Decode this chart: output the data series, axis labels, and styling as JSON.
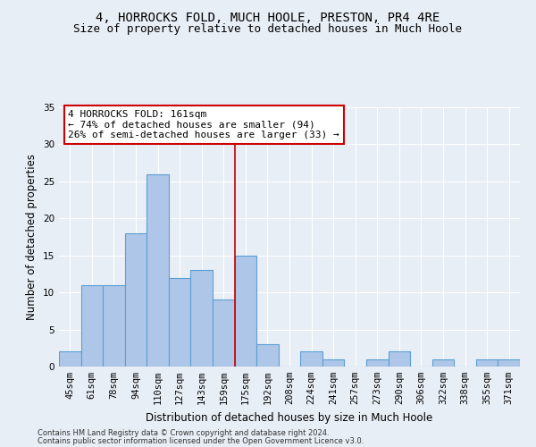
{
  "title": "4, HORROCKS FOLD, MUCH HOOLE, PRESTON, PR4 4RE",
  "subtitle": "Size of property relative to detached houses in Much Hoole",
  "xlabel": "Distribution of detached houses by size in Much Hoole",
  "ylabel": "Number of detached properties",
  "categories": [
    "45sqm",
    "61sqm",
    "78sqm",
    "94sqm",
    "110sqm",
    "127sqm",
    "143sqm",
    "159sqm",
    "175sqm",
    "192sqm",
    "208sqm",
    "224sqm",
    "241sqm",
    "257sqm",
    "273sqm",
    "290sqm",
    "306sqm",
    "322sqm",
    "338sqm",
    "355sqm",
    "371sqm"
  ],
  "values": [
    2,
    11,
    11,
    18,
    26,
    12,
    13,
    9,
    15,
    3,
    0,
    2,
    1,
    0,
    1,
    2,
    0,
    1,
    0,
    1,
    1
  ],
  "bar_color": "#aec6e8",
  "bar_edge_color": "#5a9fd4",
  "vline_x": 7.5,
  "vline_color": "#cc0000",
  "annotation_text": "4 HORROCKS FOLD: 161sqm\n← 74% of detached houses are smaller (94)\n26% of semi-detached houses are larger (33) →",
  "annotation_box_color": "#ffffff",
  "annotation_box_edge": "#cc0000",
  "ylim": [
    0,
    35
  ],
  "yticks": [
    0,
    5,
    10,
    15,
    20,
    25,
    30,
    35
  ],
  "background_color": "#e8eef5",
  "grid_color": "#ffffff",
  "footer_line1": "Contains HM Land Registry data © Crown copyright and database right 2024.",
  "footer_line2": "Contains public sector information licensed under the Open Government Licence v3.0.",
  "title_fontsize": 10,
  "subtitle_fontsize": 9,
  "axis_label_fontsize": 8.5,
  "tick_fontsize": 7.5,
  "annotation_fontsize": 8,
  "footer_fontsize": 6
}
